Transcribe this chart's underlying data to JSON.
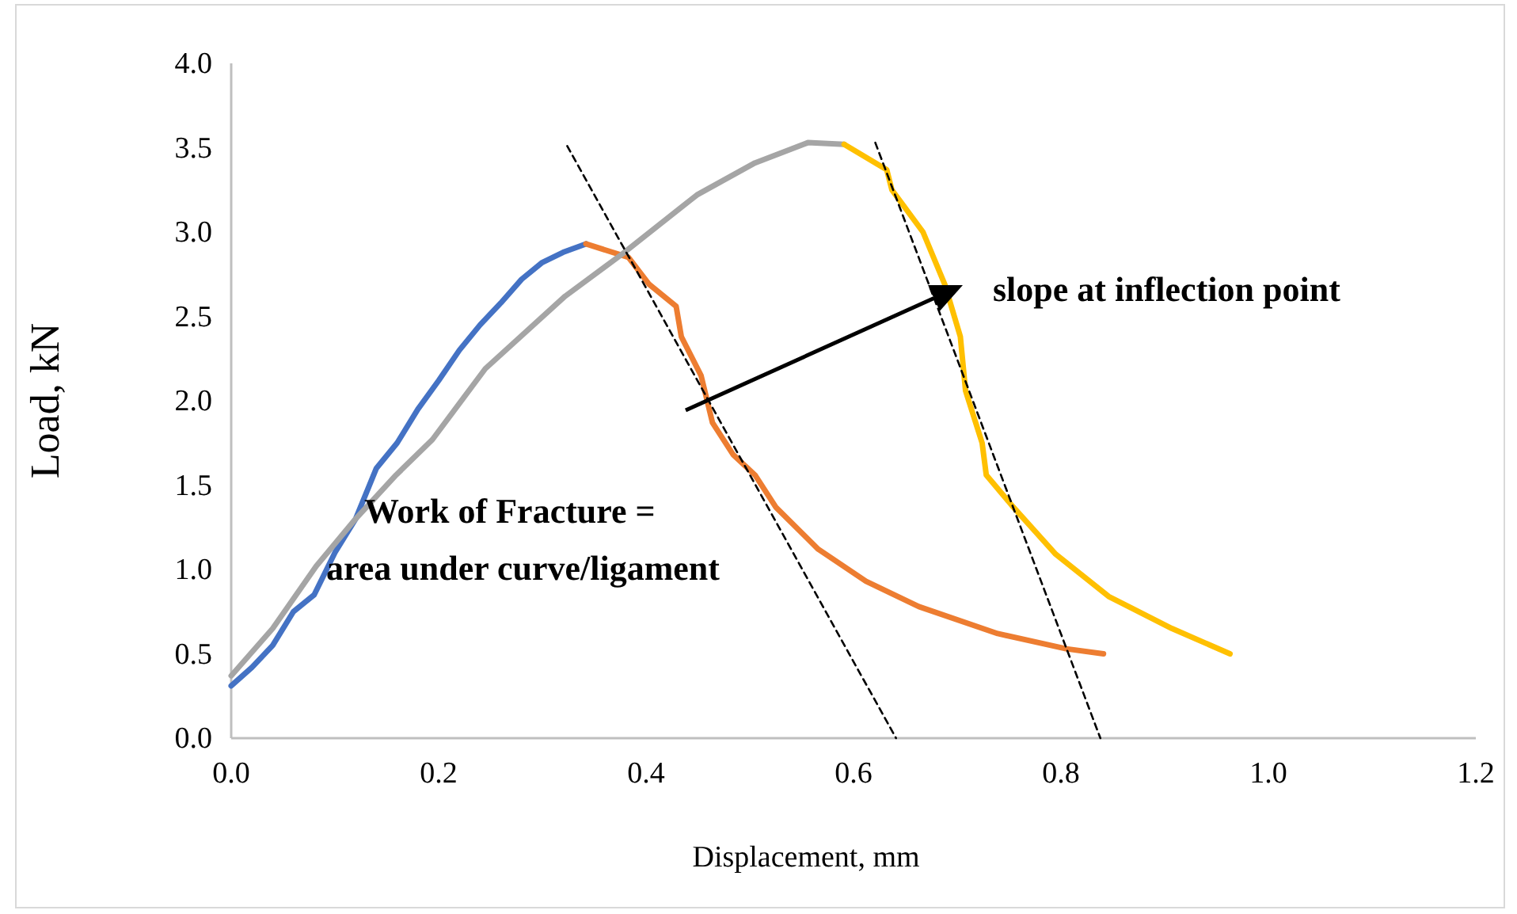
{
  "chart_data": {
    "type": "line",
    "xlabel": "Displacement, mm",
    "ylabel": "Load, kN",
    "xlim": [
      0,
      1.2
    ],
    "ylim": [
      0,
      4
    ],
    "xticks": [
      {
        "value": 0,
        "label": "0.0"
      },
      {
        "value": 0.2,
        "label": "0.2"
      },
      {
        "value": 0.4,
        "label": "0.4"
      },
      {
        "value": 0.6,
        "label": "0.6"
      },
      {
        "value": 0.8,
        "label": "0.8"
      },
      {
        "value": 1,
        "label": "1.0"
      },
      {
        "value": 1.2,
        "label": "1.2"
      }
    ],
    "yticks": [
      {
        "value": 0,
        "label": "0.0"
      },
      {
        "value": 0.5,
        "label": "0.5"
      },
      {
        "value": 1,
        "label": "1.0"
      },
      {
        "value": 1.5,
        "label": "1.5"
      },
      {
        "value": 2,
        "label": "2.0"
      },
      {
        "value": 2.5,
        "label": "2.5"
      },
      {
        "value": 3,
        "label": "3.0"
      },
      {
        "value": 3.5,
        "label": "3.5"
      },
      {
        "value": 4,
        "label": "4.0"
      }
    ],
    "grid": false,
    "series": [
      {
        "color": "#4472c4",
        "x": [
          0,
          0.02,
          0.04,
          0.06,
          0.08,
          0.1,
          0.12,
          0.14,
          0.16,
          0.18,
          0.2,
          0.22,
          0.24,
          0.26,
          0.28,
          0.3,
          0.32,
          0.342
        ],
        "values": [
          0.31,
          0.42,
          0.55,
          0.75,
          0.85,
          1.1,
          1.3,
          1.6,
          1.75,
          1.95,
          2.12,
          2.3,
          2.45,
          2.58,
          2.72,
          2.82,
          2.88,
          2.93
        ]
      },
      {
        "color": "#ed7d31",
        "x": [
          0.342,
          0.383,
          0.403,
          0.429,
          0.434,
          0.453,
          0.464,
          0.484,
          0.505,
          0.525,
          0.566,
          0.612,
          0.663,
          0.739,
          0.805,
          0.841
        ],
        "values": [
          2.93,
          2.85,
          2.69,
          2.56,
          2.38,
          2.15,
          1.87,
          1.68,
          1.56,
          1.37,
          1.12,
          0.93,
          0.78,
          0.62,
          0.53,
          0.5
        ]
      },
      {
        "color": "#a5a5a5",
        "x": [
          0,
          0.04,
          0.082,
          0.12,
          0.159,
          0.194,
          0.245,
          0.322,
          0.377,
          0.449,
          0.505,
          0.556,
          0.591
        ],
        "values": [
          0.37,
          0.65,
          1.02,
          1.3,
          1.56,
          1.77,
          2.19,
          2.62,
          2.87,
          3.22,
          3.41,
          3.53,
          3.52
        ]
      },
      {
        "color": "#ffc000",
        "x": [
          0.591,
          0.632,
          0.637,
          0.667,
          0.688,
          0.703,
          0.708,
          0.724,
          0.728,
          0.754,
          0.795,
          0.846,
          0.907,
          0.963
        ],
        "values": [
          3.52,
          3.37,
          3.25,
          3.0,
          2.69,
          2.38,
          2.06,
          1.75,
          1.56,
          1.37,
          1.09,
          0.84,
          0.65,
          0.5
        ]
      },
      {
        "color": "#000000",
        "line_style": "dashed",
        "x": [
          0.324,
          0.641
        ],
        "values": [
          3.51,
          0
        ]
      },
      {
        "color": "#000000",
        "line_style": "dashed",
        "x": [
          0.621,
          0.838
        ],
        "values": [
          3.53,
          0
        ]
      }
    ],
    "annotations": [
      "slope at inflection point",
      "Work of Fracture =\narea under curve/ligament"
    ]
  }
}
